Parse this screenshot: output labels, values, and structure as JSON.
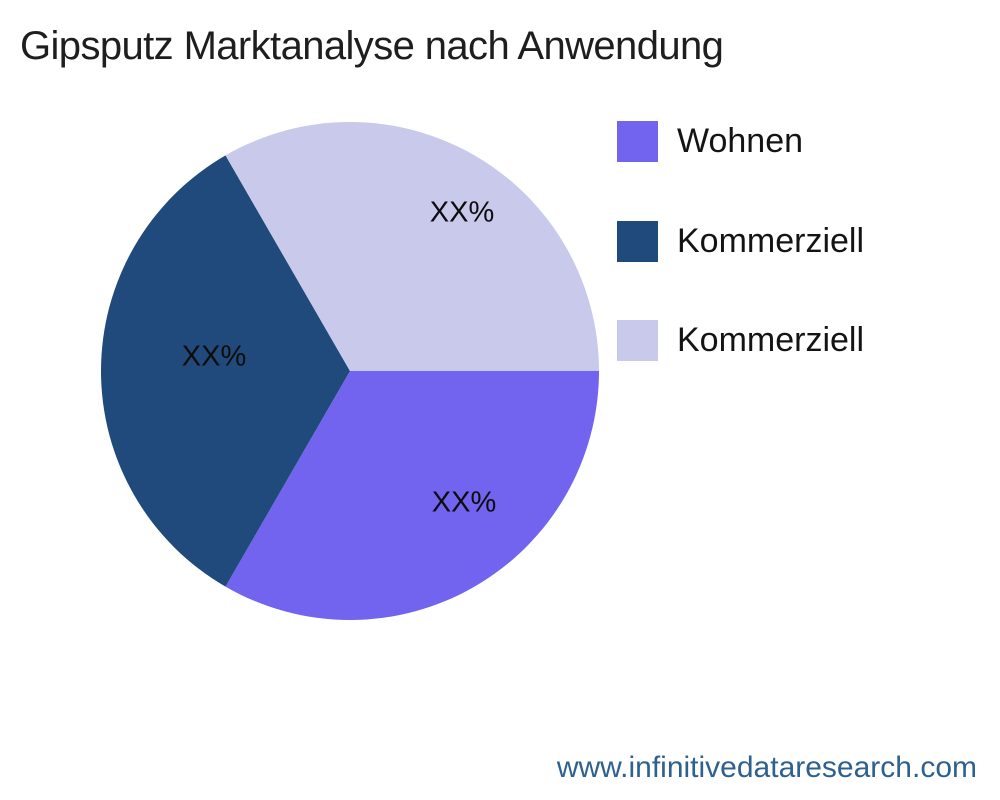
{
  "chart_data": {
    "type": "pie",
    "title": "Gipsputz Marktanalyse nach Anwendung",
    "start_angle_deg": 0,
    "direction": "clockwise",
    "legend_position": "right",
    "background": "#ffffff",
    "categories": [
      "Wohnen",
      "Kommerziell",
      "Kommerziell"
    ],
    "values": [
      33.3,
      33.3,
      33.3
    ],
    "slices": [
      {
        "label": "Wohnen",
        "value": 33.3,
        "pct_label": "XX%",
        "color": "#7264ef"
      },
      {
        "label": "Kommerziell",
        "value": 33.3,
        "pct_label": "XX%",
        "color": "#204a7b"
      },
      {
        "label": "Kommerziell",
        "value": 33.3,
        "pct_label": "XX%",
        "color": "#c9c9ec"
      }
    ]
  },
  "footer": {
    "url": "www.infinitivedataresearch.com",
    "color": "#2f618f"
  }
}
